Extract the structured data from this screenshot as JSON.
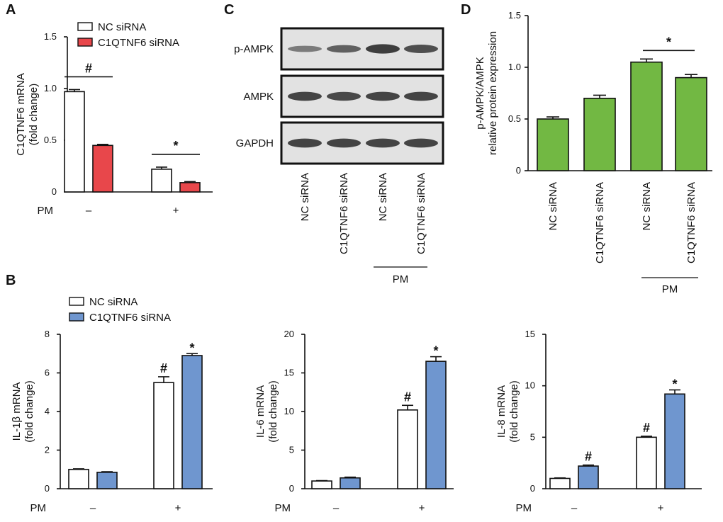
{
  "colors": {
    "nc": "#ffffff",
    "red": "#e8474b",
    "blue": "#6f96cf",
    "green": "#72b843",
    "stroke": "#111111",
    "blot_bg": "#e2e2e2",
    "band": "#2a2a2a"
  },
  "chart_data": [
    {
      "id": "A",
      "type": "bar",
      "panel_letter": "A",
      "ylabel": [
        "C1QTNF6 mRNA",
        "(fold change)"
      ],
      "ylim": [
        0,
        1.5
      ],
      "yticks": [
        "0",
        "0.5",
        "1.0",
        "1.5"
      ],
      "ytick_values": [
        0,
        0.5,
        1.0,
        1.5
      ],
      "xlabel_prefix": "PM",
      "categories": [
        "–",
        "+"
      ],
      "legend": [
        "NC siRNA",
        "C1QTNF6 siRNA"
      ],
      "series": [
        {
          "name": "NC siRNA",
          "values": [
            0.97,
            0.22
          ],
          "errors": [
            0.02,
            0.02
          ],
          "color": "nc"
        },
        {
          "name": "C1QTNF6 siRNA",
          "values": [
            0.45,
            0.09
          ],
          "errors": [
            0.01,
            0.01
          ],
          "color": "red"
        }
      ],
      "annotations": [
        {
          "text": "#",
          "group": 0,
          "type": "bracket"
        },
        {
          "text": "*",
          "group": 1,
          "type": "bracket"
        }
      ]
    },
    {
      "id": "B1",
      "type": "bar",
      "panel_letter": "B",
      "ylabel": [
        "IL-1β mRNA",
        "(fold change)"
      ],
      "ylim": [
        0,
        8
      ],
      "yticks": [
        "0",
        "2",
        "4",
        "6",
        "8"
      ],
      "ytick_values": [
        0,
        2,
        4,
        6,
        8
      ],
      "xlabel_prefix": "PM",
      "categories": [
        "–",
        "+"
      ],
      "legend": [
        "NC siRNA",
        "C1QTNF6 siRNA"
      ],
      "series": [
        {
          "name": "NC siRNA",
          "values": [
            1.0,
            5.5
          ],
          "errors": [
            0.03,
            0.3
          ],
          "color": "nc"
        },
        {
          "name": "C1QTNF6 siRNA",
          "values": [
            0.85,
            6.9
          ],
          "errors": [
            0.03,
            0.1
          ],
          "color": "blue"
        }
      ],
      "annotations": [
        {
          "text": "#",
          "group": 1,
          "series": 0
        },
        {
          "text": "*",
          "group": 1,
          "series": 1
        }
      ]
    },
    {
      "id": "B2",
      "type": "bar",
      "ylabel": [
        "IL-6 mRNA",
        "(fold change)"
      ],
      "ylim": [
        0,
        20
      ],
      "yticks": [
        "0",
        "5",
        "10",
        "15",
        "20"
      ],
      "ytick_values": [
        0,
        5,
        10,
        15,
        20
      ],
      "xlabel_prefix": "PM",
      "categories": [
        "–",
        "+"
      ],
      "series": [
        {
          "name": "NC siRNA",
          "values": [
            1.0,
            10.2
          ],
          "errors": [
            0.05,
            0.6
          ],
          "color": "nc"
        },
        {
          "name": "C1QTNF6 siRNA",
          "values": [
            1.4,
            16.5
          ],
          "errors": [
            0.1,
            0.6
          ],
          "color": "blue"
        }
      ],
      "annotations": [
        {
          "text": "#",
          "group": 1,
          "series": 0
        },
        {
          "text": "*",
          "group": 1,
          "series": 1
        }
      ]
    },
    {
      "id": "B3",
      "type": "bar",
      "ylabel": [
        "IL-8 mRNA",
        "(fold change)"
      ],
      "ylim": [
        0,
        15
      ],
      "yticks": [
        "0",
        "5",
        "10",
        "15"
      ],
      "ytick_values": [
        0,
        5,
        10,
        15
      ],
      "xlabel_prefix": "PM",
      "categories": [
        "–",
        "+"
      ],
      "series": [
        {
          "name": "NC siRNA",
          "values": [
            1.0,
            5.0
          ],
          "errors": [
            0.05,
            0.1
          ],
          "color": "nc"
        },
        {
          "name": "C1QTNF6 siRNA",
          "values": [
            2.2,
            9.2
          ],
          "errors": [
            0.1,
            0.4
          ],
          "color": "blue"
        }
      ],
      "annotations": [
        {
          "text": "#",
          "group": 0,
          "series": 1
        },
        {
          "text": "#",
          "group": 1,
          "series": 0
        },
        {
          "text": "*",
          "group": 1,
          "series": 1
        }
      ]
    },
    {
      "id": "D",
      "type": "bar",
      "panel_letter": "D",
      "ylabel": [
        "p-AMPK/AMPK",
        "relative protein expression"
      ],
      "ylim": [
        0,
        1.5
      ],
      "yticks": [
        "0",
        "0.5",
        "1.0",
        "1.5"
      ],
      "ytick_values": [
        0,
        0.5,
        1.0,
        1.5
      ],
      "categories": [
        "NC siRNA",
        "C1QTNF6 siRNA",
        "NC siRNA",
        "C1QTNF6 siRNA"
      ],
      "values": [
        0.5,
        0.7,
        1.05,
        0.9
      ],
      "errors": [
        0.02,
        0.03,
        0.03,
        0.03
      ],
      "color": "green",
      "group_label": "PM",
      "annotations": [
        {
          "text": "*",
          "bars": [
            2,
            3
          ],
          "type": "bracket"
        }
      ]
    }
  ],
  "blot": {
    "panel_letter": "C",
    "rows": [
      {
        "label": "p-AMPK",
        "intensities": [
          0.35,
          0.6,
          0.9,
          0.75
        ]
      },
      {
        "label": "AMPK",
        "intensities": [
          0.85,
          0.8,
          0.85,
          0.85
        ]
      },
      {
        "label": "GAPDH",
        "intensities": [
          0.85,
          0.85,
          0.85,
          0.85
        ]
      }
    ],
    "lanes": [
      "NC siRNA",
      "C1QTNF6 siRNA",
      "NC siRNA",
      "C1QTNF6 siRNA"
    ],
    "group_label": "PM"
  }
}
